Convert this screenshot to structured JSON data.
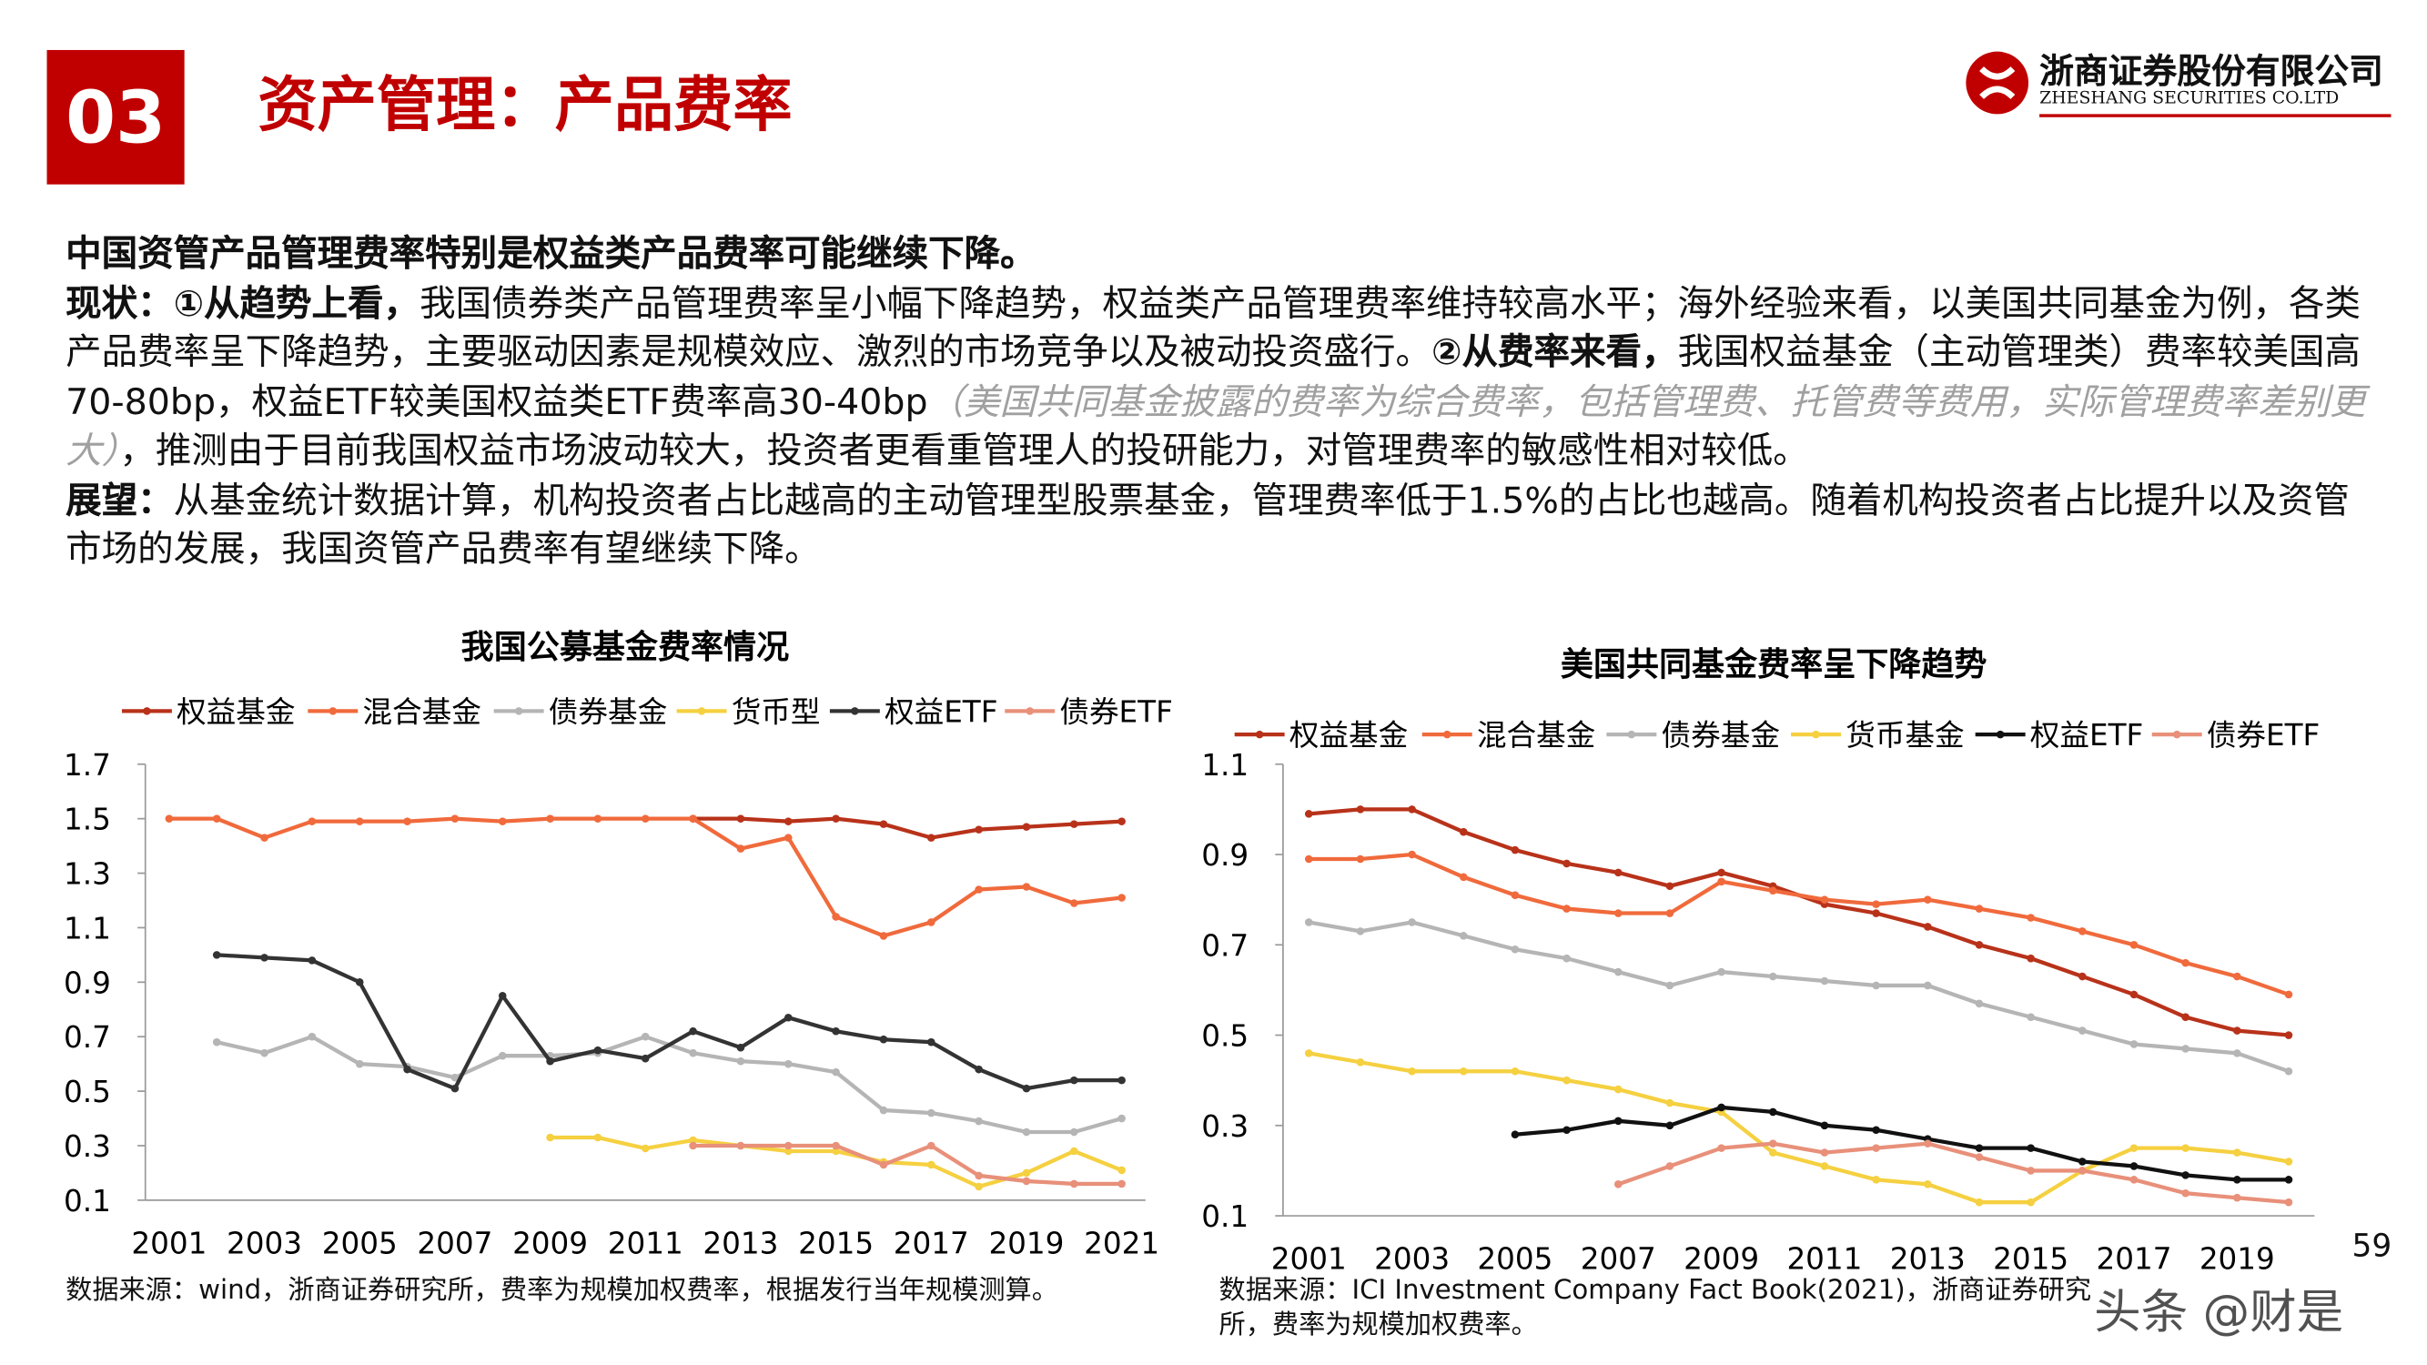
{
  "header": {
    "section": "03",
    "title": "资产管理：产品费率",
    "company": "浙商证券股份有限公司",
    "company_en": "ZHESHANG SECURITIES CO.LTD"
  },
  "body": {
    "heading": "中国资管产品管理费率特别是权益类产品费率可能继续下降。",
    "status": {
      "label": "现状：",
      "point1": "①从趋势上看，",
      "text1": "我国债券类产品管理费率呈小幅下降趋势，权益类产品管理费率维持较高水平；海外经验来看，以美国共同基金为例，各类产品费率呈下降趋势，主要驱动因素是规模效应、激烈的市场竞争以及被动投资盛行。",
      "point2": "②从费率来看，",
      "text2": "我国权益基金（主动管理类）费率较美国高70-80bp，权益ETF较美国权益类ETF费率高30-40bp",
      "note": "（美国共同基金披露的费率为综合费率，包括管理费、托管费等费用，实际管理费率差别更大）",
      "text3": "，推测由于目前我国权益市场波动较大，投资者更看重管理人的投研能力，对管理费率的敏感性相对较低。"
    },
    "outlook": {
      "label": "展望：",
      "text": "从基金统计数据计算，机构投资者占比越高的主动管理型股票基金，管理费率低于1.5%的占比也越高。随着机构投资者占比提升以及资管市场的发展，我国资管产品费率有望继续下降。"
    }
  },
  "chart_data": [
    {
      "type": "line",
      "title": "我国公募基金费率情况",
      "categories": [
        "2001",
        null,
        "2003",
        null,
        "2005",
        null,
        "2007",
        null,
        "2009",
        null,
        "2011",
        null,
        "2013",
        null,
        "2015",
        null,
        "2017",
        null,
        "2019",
        null,
        "2021"
      ],
      "ylim": [
        0.1,
        1.7
      ],
      "yticks": [
        0.1,
        0.3,
        0.5,
        0.7,
        0.9,
        1.1,
        1.3,
        1.5,
        1.7
      ],
      "series": [
        {
          "name": "权益基金",
          "color": "#b8321a",
          "values": [
            null,
            null,
            null,
            null,
            null,
            null,
            null,
            null,
            null,
            null,
            null,
            1.5,
            1.5,
            1.49,
            1.5,
            1.48,
            1.43,
            1.46,
            1.47,
            1.48,
            1.49
          ]
        },
        {
          "name": "混合基金",
          "color": "#f06a3c",
          "values": [
            1.5,
            1.5,
            1.43,
            1.49,
            1.49,
            1.49,
            1.5,
            1.49,
            1.5,
            1.5,
            1.5,
            1.5,
            1.39,
            1.43,
            1.14,
            1.07,
            1.12,
            1.24,
            1.25,
            1.19,
            1.21
          ]
        },
        {
          "name": "债券基金",
          "color": "#b5b5b5",
          "values": [
            null,
            0.68,
            0.64,
            0.7,
            0.6,
            0.59,
            0.55,
            0.63,
            0.63,
            0.64,
            0.7,
            0.64,
            0.61,
            0.6,
            0.57,
            0.43,
            0.42,
            0.39,
            0.35,
            0.35,
            0.4
          ]
        },
        {
          "name": "货币型",
          "color": "#f5d040",
          "values": [
            null,
            null,
            null,
            null,
            null,
            null,
            null,
            null,
            0.33,
            0.33,
            0.29,
            0.32,
            0.3,
            0.28,
            0.28,
            0.24,
            0.23,
            0.15,
            0.2,
            0.28,
            0.21
          ]
        },
        {
          "name": "权益ETF",
          "color": "#333333",
          "values": [
            null,
            1.0,
            0.99,
            0.98,
            0.9,
            0.58,
            0.51,
            0.85,
            0.61,
            0.65,
            0.62,
            0.72,
            0.66,
            0.77,
            0.72,
            0.69,
            0.68,
            0.58,
            0.51,
            0.54,
            0.54
          ]
        },
        {
          "name": "债券ETF",
          "color": "#e8907a",
          "values": [
            null,
            null,
            null,
            null,
            null,
            null,
            null,
            null,
            null,
            null,
            null,
            0.3,
            0.3,
            0.3,
            0.3,
            0.23,
            0.3,
            0.19,
            0.17,
            0.16,
            0.16
          ]
        }
      ],
      "source": "数据来源：wind，浙商证券研究所，费率为规模加权费率，根据发行当年规模测算。"
    },
    {
      "type": "line",
      "title": "美国共同基金费率呈下降趋势",
      "categories": [
        "2001",
        null,
        "2003",
        null,
        "2005",
        null,
        "2007",
        null,
        "2009",
        null,
        "2011",
        null,
        "2013",
        null,
        "2015",
        null,
        "2017",
        null,
        "2019",
        null
      ],
      "ylim": [
        0.1,
        1.1
      ],
      "yticks": [
        0.1,
        0.3,
        0.5,
        0.7,
        0.9,
        1.1
      ],
      "series": [
        {
          "name": "权益基金",
          "color": "#b8321a",
          "values": [
            0.99,
            1.0,
            1.0,
            0.95,
            0.91,
            0.88,
            0.86,
            0.83,
            0.86,
            0.83,
            0.79,
            0.77,
            0.74,
            0.7,
            0.67,
            0.63,
            0.59,
            0.54,
            0.51,
            0.5
          ]
        },
        {
          "name": "混合基金",
          "color": "#f06a3c",
          "values": [
            0.89,
            0.89,
            0.9,
            0.85,
            0.81,
            0.78,
            0.77,
            0.77,
            0.84,
            0.82,
            0.8,
            0.79,
            0.8,
            0.78,
            0.76,
            0.73,
            0.7,
            0.66,
            0.63,
            0.59
          ]
        },
        {
          "name": "债券基金",
          "color": "#b5b5b5",
          "values": [
            0.75,
            0.73,
            0.75,
            0.72,
            0.69,
            0.67,
            0.64,
            0.61,
            0.64,
            0.63,
            0.62,
            0.61,
            0.61,
            0.57,
            0.54,
            0.51,
            0.48,
            0.47,
            0.46,
            0.42
          ]
        },
        {
          "name": "货币基金",
          "color": "#f5d040",
          "values": [
            0.46,
            0.44,
            0.42,
            0.42,
            0.42,
            0.4,
            0.38,
            0.35,
            0.33,
            0.24,
            0.21,
            0.18,
            0.17,
            0.13,
            0.13,
            0.2,
            0.25,
            0.25,
            0.24,
            0.22
          ]
        },
        {
          "name": "权益ETF",
          "color": "#111111",
          "values": [
            null,
            null,
            null,
            null,
            0.28,
            0.29,
            0.31,
            0.3,
            0.34,
            0.33,
            0.3,
            0.29,
            0.27,
            0.25,
            0.25,
            0.22,
            0.21,
            0.19,
            0.18,
            0.18
          ]
        },
        {
          "name": "债券ETF",
          "color": "#e8907a",
          "values": [
            null,
            null,
            null,
            null,
            null,
            null,
            0.17,
            0.21,
            0.25,
            0.26,
            0.24,
            0.25,
            0.26,
            0.23,
            0.2,
            0.2,
            0.18,
            0.15,
            0.14,
            0.13
          ]
        }
      ],
      "source": "数据来源：ICI Investment Company Fact Book(2021)，浙商证券研究所，费率为规模加权费率。"
    }
  ],
  "footer": {
    "page": "59",
    "watermark": "头条 @财是"
  }
}
